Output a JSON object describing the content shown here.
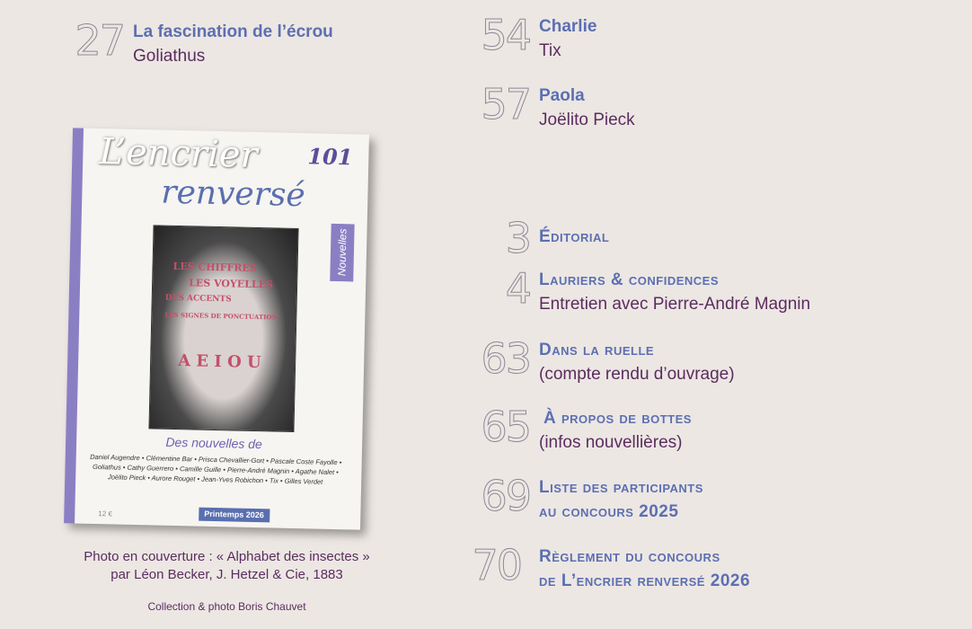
{
  "colors": {
    "background": "#ece7e3",
    "title": "#5c6fb2",
    "subtitle": "#5b2c5f",
    "page_number": "#9a93a0",
    "cover_accent": "#8b7fc4"
  },
  "top_entries": [
    {
      "page": "27",
      "title": "La fascination de l’écrou",
      "author": "Goliathus"
    },
    {
      "page": "54",
      "title": "Charlie",
      "author": "Tix"
    },
    {
      "page": "57",
      "title": "Paola",
      "author": "Joëlito Pieck"
    }
  ],
  "sections": [
    {
      "page": "3",
      "title": "Éditorial",
      "subtitle": ""
    },
    {
      "page": "4",
      "title": "Lauriers & confidences",
      "subtitle": "Entretien avec Pierre-André Magnin"
    },
    {
      "page": "63",
      "title": "Dans la ruelle",
      "subtitle": "(compte rendu d’ouvrage)"
    },
    {
      "page": "65",
      "title": "À propos de bottes",
      "subtitle": "(infos nouvellières)"
    },
    {
      "page": "69",
      "title": "Liste  des participants",
      "title2": "au concours 2025"
    },
    {
      "page": "70",
      "title": "Règlement du concours",
      "title2": "de L’encrier renversé 2026"
    }
  ],
  "cover": {
    "logo_line1": "L’encrier",
    "logo_line2": "renversé",
    "issue": "101",
    "tab": "Nouvelles",
    "art_labels": [
      "LES CHIFFRES",
      "LES VOYELLES",
      "DES ACCENTS",
      "LES SIGNES DE PONCTUATION",
      "A E I O U"
    ],
    "heading": "Des nouvelles de",
    "names": "Daniel Augendre • Clémentine Bar • Prisca Chevallier-Gort • Pascale Coste Fayolle • Goliathus • Cathy Guerrero • Camille Guille • Pierre-André Magnin • Agathe Nalet • Joëlito Pieck • Aurore Rouget • Jean-Yves Robichon • Tix • Gilles Verdet",
    "price": "12 €",
    "season": "Printemps 2026"
  },
  "caption": {
    "line1": "Photo en couverture : « Alphabet des insectes »",
    "line2": "par Léon Becker, J. Hetzel & Cie, 1883",
    "credit": "Collection & photo Boris Chauvet"
  }
}
